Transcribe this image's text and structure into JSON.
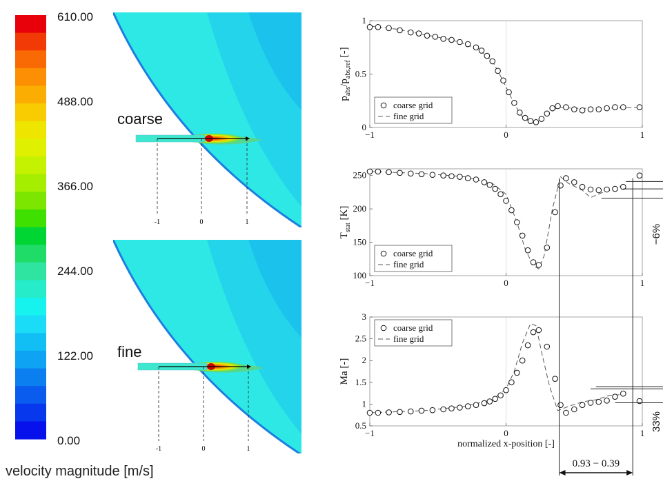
{
  "colorbar": {
    "title": "velocity magnitude [m/s]",
    "tick_labels": [
      "610.00",
      "488.00",
      "366.00",
      "244.00",
      "122.00",
      "0.00"
    ],
    "colors": [
      "#e8000a",
      "#f23a07",
      "#f96a05",
      "#fc8f04",
      "#fcad02",
      "#f8cc00",
      "#eee600",
      "#dff000",
      "#c5f200",
      "#a5ee00",
      "#7de600",
      "#3fe000",
      "#00d633",
      "#1fdb68",
      "#2fe3a0",
      "#26ecc9",
      "#16f2ee",
      "#1adcf7",
      "#12bff5",
      "#0fa3f3",
      "#0b7ff0",
      "#0a5cee",
      "#0838ee",
      "#0711ec"
    ]
  },
  "contours": {
    "coarse_label": "coarse",
    "fine_label": "fine",
    "axis_ticks": [
      "-1",
      "0",
      "1"
    ]
  },
  "chart_data": [
    {
      "type": "scatter",
      "ylabel_main": "p",
      "ylabel_sub1": "abs",
      "ylabel_mid": "/p",
      "ylabel_sub2": "abs,ref",
      "ylabel_tail": " [-]",
      "xlim": [
        -1,
        1
      ],
      "ylim": [
        0,
        1
      ],
      "xticks": [
        "-1",
        "0",
        "1"
      ],
      "yticks": [
        "0",
        "0.5",
        "1"
      ],
      "legend": [
        "coarse grid",
        "fine grid"
      ],
      "series": [
        {
          "name": "coarse grid",
          "marker": "circle",
          "x": [
            -1.0,
            -0.94,
            -0.86,
            -0.78,
            -0.7,
            -0.64,
            -0.58,
            -0.52,
            -0.46,
            -0.4,
            -0.34,
            -0.28,
            -0.22,
            -0.18,
            -0.14,
            -0.1,
            -0.06,
            -0.02,
            0.02,
            0.06,
            0.1,
            0.14,
            0.18,
            0.22,
            0.26,
            0.3,
            0.34,
            0.38,
            0.44,
            0.5,
            0.56,
            0.62,
            0.68,
            0.74,
            0.8,
            0.86,
            0.98
          ],
          "y": [
            0.94,
            0.94,
            0.93,
            0.91,
            0.89,
            0.88,
            0.86,
            0.85,
            0.83,
            0.82,
            0.8,
            0.78,
            0.75,
            0.72,
            0.67,
            0.62,
            0.53,
            0.44,
            0.33,
            0.23,
            0.14,
            0.09,
            0.06,
            0.05,
            0.08,
            0.13,
            0.18,
            0.2,
            0.19,
            0.17,
            0.16,
            0.17,
            0.17,
            0.18,
            0.19,
            0.19,
            0.19
          ]
        },
        {
          "name": "fine grid",
          "marker": "dash",
          "x": [
            -1.0,
            -0.8,
            -0.6,
            -0.4,
            -0.3,
            -0.2,
            -0.1,
            -0.04,
            0.0,
            0.06,
            0.12,
            0.18,
            0.24,
            0.3,
            0.38,
            0.5,
            0.7,
            1.0
          ],
          "y": [
            0.95,
            0.92,
            0.87,
            0.82,
            0.78,
            0.73,
            0.62,
            0.48,
            0.38,
            0.22,
            0.1,
            0.05,
            0.06,
            0.12,
            0.19,
            0.18,
            0.18,
            0.19
          ]
        }
      ]
    },
    {
      "type": "scatter",
      "ylabel_main": "T",
      "ylabel_sub1": "stat",
      "ylabel_tail": " [K]",
      "xlim": [
        -1,
        1
      ],
      "ylim": [
        100,
        260
      ],
      "xticks": [
        "-1",
        "0",
        "1"
      ],
      "yticks": [
        "100",
        "150",
        "200",
        "250"
      ],
      "legend": [
        "coarse grid",
        "fine grid"
      ],
      "annotation": "−6%",
      "series": [
        {
          "name": "coarse grid",
          "marker": "circle",
          "x": [
            -1.0,
            -0.94,
            -0.86,
            -0.78,
            -0.7,
            -0.62,
            -0.54,
            -0.46,
            -0.4,
            -0.34,
            -0.28,
            -0.22,
            -0.16,
            -0.12,
            -0.08,
            -0.04,
            0.0,
            0.04,
            0.08,
            0.12,
            0.16,
            0.2,
            0.24,
            0.3,
            0.36,
            0.4,
            0.44,
            0.5,
            0.56,
            0.62,
            0.68,
            0.74,
            0.8,
            0.86,
            0.98
          ],
          "y": [
            256,
            256,
            255,
            254,
            253,
            252,
            251,
            250,
            249,
            248,
            246,
            244,
            240,
            236,
            230,
            222,
            212,
            198,
            180,
            160,
            138,
            120,
            116,
            142,
            195,
            235,
            246,
            240,
            233,
            229,
            228,
            229,
            230,
            233,
            250
          ]
        },
        {
          "name": "fine grid",
          "marker": "dash",
          "x": [
            -1.0,
            -0.6,
            -0.3,
            -0.1,
            0.0,
            0.08,
            0.14,
            0.2,
            0.24,
            0.28,
            0.34,
            0.4,
            0.46,
            0.56,
            0.62,
            0.7,
            0.8,
            0.86
          ],
          "y": [
            256,
            253,
            248,
            238,
            222,
            180,
            140,
            115,
            110,
            130,
            200,
            248,
            238,
            228,
            217,
            224,
            230,
            236
          ]
        }
      ]
    },
    {
      "type": "scatter",
      "ylabel_main": "Ma [-]",
      "xlabel": "normalized x-position [-]",
      "xlim": [
        -1,
        1
      ],
      "ylim": [
        0.5,
        3
      ],
      "xticks": [
        "-1",
        "0",
        "1"
      ],
      "yticks": [
        "0.5",
        "1",
        "1.5",
        "2",
        "2.5",
        "3"
      ],
      "legend": [
        "coarse grid",
        "fine grid"
      ],
      "annotation": "33%",
      "bracket_label": "0.93 − 0.39",
      "series": [
        {
          "name": "coarse grid",
          "marker": "circle",
          "x": [
            -1.0,
            -0.94,
            -0.86,
            -0.78,
            -0.7,
            -0.62,
            -0.54,
            -0.46,
            -0.4,
            -0.34,
            -0.28,
            -0.22,
            -0.16,
            -0.12,
            -0.08,
            -0.04,
            0.0,
            0.04,
            0.08,
            0.12,
            0.16,
            0.2,
            0.24,
            0.3,
            0.36,
            0.4,
            0.44,
            0.5,
            0.56,
            0.62,
            0.68,
            0.74,
            0.8,
            0.86,
            0.98
          ],
          "y": [
            0.8,
            0.8,
            0.81,
            0.82,
            0.83,
            0.85,
            0.86,
            0.88,
            0.9,
            0.92,
            0.95,
            0.98,
            1.02,
            1.06,
            1.12,
            1.2,
            1.32,
            1.5,
            1.72,
            2.0,
            2.35,
            2.65,
            2.7,
            2.32,
            1.58,
            0.98,
            0.8,
            0.88,
            0.98,
            1.03,
            1.05,
            1.08,
            1.17,
            1.24,
            1.07
          ]
        },
        {
          "name": "fine grid",
          "marker": "dash",
          "x": [
            -1.0,
            -0.6,
            -0.3,
            -0.1,
            0.0,
            0.06,
            0.12,
            0.18,
            0.22,
            0.26,
            0.32,
            0.38,
            0.46,
            0.56,
            0.66,
            0.76,
            0.86
          ],
          "y": [
            0.8,
            0.85,
            0.95,
            1.1,
            1.35,
            1.75,
            2.4,
            2.85,
            2.8,
            2.2,
            1.4,
            0.85,
            0.95,
            1.05,
            1.1,
            1.2,
            1.22
          ]
        }
      ]
    }
  ]
}
